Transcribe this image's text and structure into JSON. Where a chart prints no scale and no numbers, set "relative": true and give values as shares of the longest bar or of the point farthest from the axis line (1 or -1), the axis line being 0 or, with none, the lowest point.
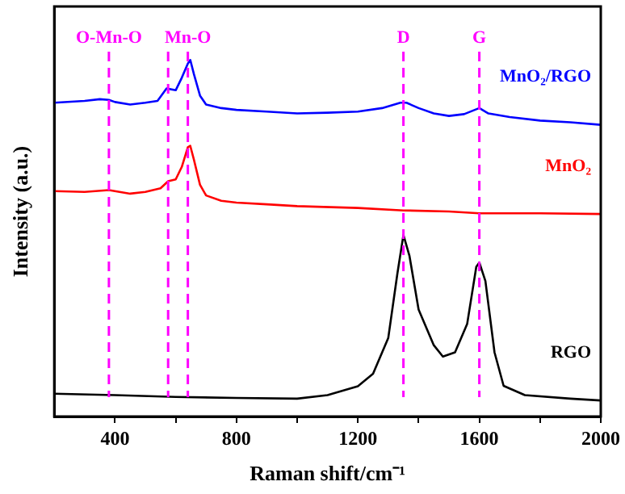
{
  "chart_data": {
    "type": "line",
    "relative": true,
    "xlabel": "Raman shift/cm⁻¹",
    "ylabel": "Intensity (a.u.)",
    "xlim": [
      200,
      2000
    ],
    "xticks": [
      400,
      {
        "value": 600,
        "label": null
      },
      800,
      {
        "value": 1000,
        "label": null
      },
      1200,
      {
        "value": 1400,
        "label": null
      },
      1600,
      {
        "value": 1800,
        "label": null
      },
      2000
    ],
    "grid": false,
    "legend": false,
    "marker": "none",
    "line_style": "solid",
    "series": [
      {
        "name": "MnO₂/RGO",
        "color": "#0000ff",
        "x": [
          200,
          300,
          350,
          380,
          400,
          450,
          500,
          540,
          570,
          600,
          620,
          640,
          648,
          660,
          680,
          700,
          750,
          800,
          900,
          1000,
          1100,
          1200,
          1280,
          1340,
          1360,
          1400,
          1450,
          1500,
          1550,
          1600,
          1630,
          1700,
          1800,
          1900,
          2000
        ],
        "values": [
          0.88,
          0.885,
          0.89,
          0.888,
          0.882,
          0.875,
          0.88,
          0.885,
          0.92,
          0.915,
          0.95,
          0.99,
          1.0,
          0.96,
          0.9,
          0.875,
          0.865,
          0.86,
          0.855,
          0.85,
          0.852,
          0.855,
          0.865,
          0.88,
          0.88,
          0.865,
          0.85,
          0.843,
          0.848,
          0.865,
          0.85,
          0.84,
          0.83,
          0.825,
          0.818
        ]
      },
      {
        "name": "MnO₂",
        "color": "#ff0000",
        "x": [
          200,
          300,
          380,
          450,
          500,
          550,
          575,
          600,
          620,
          640,
          648,
          660,
          680,
          700,
          750,
          800,
          900,
          1000,
          1200,
          1350,
          1500,
          1600,
          1800,
          2000
        ],
        "values": [
          0.632,
          0.63,
          0.635,
          0.625,
          0.63,
          0.64,
          0.66,
          0.665,
          0.7,
          0.755,
          0.759,
          0.72,
          0.65,
          0.62,
          0.605,
          0.6,
          0.595,
          0.59,
          0.585,
          0.578,
          0.575,
          0.57,
          0.57,
          0.568
        ]
      },
      {
        "name": "RGO",
        "color": "#000000",
        "x": [
          200,
          400,
          600,
          800,
          1000,
          1100,
          1200,
          1250,
          1300,
          1330,
          1350,
          1370,
          1400,
          1450,
          1480,
          1520,
          1560,
          1590,
          1600,
          1620,
          1650,
          1680,
          1750,
          1900,
          2000
        ],
        "values": [
          0.064,
          0.06,
          0.055,
          0.052,
          0.05,
          0.06,
          0.085,
          0.12,
          0.22,
          0.4,
          0.509,
          0.45,
          0.3,
          0.2,
          0.168,
          0.18,
          0.26,
          0.42,
          0.432,
          0.38,
          0.18,
          0.086,
          0.06,
          0.05,
          0.045
        ]
      }
    ],
    "ref_lines": [
      {
        "axis": "x",
        "value": 380,
        "label": "O-Mn-O",
        "color": "#ff00ff",
        "line_style": "dashed"
      },
      {
        "axis": "x",
        "value": 575,
        "label": null,
        "color": "#ff00ff",
        "line_style": "dashed"
      },
      {
        "axis": "x",
        "value": 640,
        "label": "Mn-O",
        "color": "#ff00ff",
        "line_style": "dashed"
      },
      {
        "axis": "x",
        "value": 1350,
        "label": "D",
        "color": "#ff00ff",
        "line_style": "dashed"
      },
      {
        "axis": "x",
        "value": 1600,
        "label": "G",
        "color": "#ff00ff",
        "line_style": "dashed"
      }
    ]
  }
}
